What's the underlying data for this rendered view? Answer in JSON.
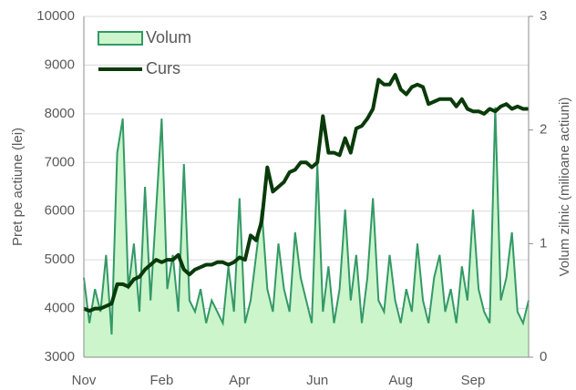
{
  "chart_data": {
    "type": "area-line",
    "x_label": null,
    "y_label": "Pret pe actiune (lei)",
    "y2_label": "Volum zilnic (milioane actiuni)",
    "categories": [
      "Nov",
      null,
      null,
      null,
      null,
      null,
      null,
      null,
      null,
      null,
      null,
      null,
      null,
      null,
      "Feb",
      null,
      null,
      null,
      null,
      null,
      null,
      null,
      null,
      null,
      null,
      null,
      null,
      null,
      "Apr",
      null,
      null,
      null,
      null,
      null,
      null,
      null,
      null,
      null,
      null,
      null,
      null,
      null,
      "Jun",
      null,
      null,
      null,
      null,
      null,
      null,
      null,
      null,
      null,
      null,
      null,
      null,
      null,
      null,
      "Aug",
      null,
      null,
      null,
      null,
      null,
      null,
      null,
      null,
      null,
      null,
      null,
      null,
      "Sep",
      null,
      null,
      null,
      null,
      null,
      null,
      null,
      null,
      null,
      null
    ],
    "series": [
      {
        "name": "Volum",
        "kind": "area",
        "axis": "y2",
        "color": "#339966",
        "fill": "#ccf5cc",
        "values": [
          0.7,
          0.3,
          0.6,
          0.4,
          0.9,
          0.2,
          1.8,
          2.1,
          0.6,
          1.0,
          0.4,
          1.5,
          0.5,
          1.3,
          2.1,
          0.6,
          0.9,
          0.4,
          1.7,
          0.5,
          0.4,
          0.6,
          0.3,
          0.5,
          0.4,
          0.3,
          0.8,
          0.4,
          1.4,
          0.3,
          0.5,
          0.9,
          1.3,
          0.6,
          0.4,
          1.0,
          0.6,
          0.4,
          1.1,
          0.7,
          0.5,
          0.3,
          1.7,
          0.4,
          0.8,
          0.3,
          0.6,
          1.3,
          0.5,
          0.9,
          0.3,
          0.7,
          1.4,
          0.5,
          0.4,
          0.9,
          0.5,
          0.3,
          0.6,
          0.4,
          1.0,
          0.5,
          0.3,
          0.7,
          0.9,
          0.4,
          0.6,
          0.3,
          0.8,
          0.5,
          1.3,
          0.6,
          0.4,
          0.3,
          2.2,
          0.5,
          0.7,
          1.1,
          0.4,
          0.3,
          0.5
        ]
      },
      {
        "name": "Curs",
        "kind": "line",
        "axis": "y",
        "color": "#0a3a0a",
        "values": [
          4000,
          3950,
          4000,
          4000,
          4050,
          4100,
          4500,
          4500,
          4450,
          4600,
          4650,
          4800,
          4900,
          5000,
          4950,
          5000,
          5000,
          5100,
          4800,
          4700,
          4800,
          4850,
          4900,
          4900,
          4950,
          4950,
          4900,
          4950,
          5050,
          5000,
          5500,
          5400,
          5800,
          6900,
          6400,
          6500,
          6600,
          6800,
          6850,
          7000,
          7000,
          6900,
          7000,
          7950,
          7200,
          7200,
          7150,
          7500,
          7200,
          7700,
          7750,
          7900,
          8100,
          8700,
          8600,
          8600,
          8800,
          8500,
          8400,
          8550,
          8600,
          8550,
          8200,
          8250,
          8300,
          8300,
          8300,
          8150,
          8300,
          8100,
          8050,
          8050,
          8000,
          8100,
          8050,
          8150,
          8200,
          8100,
          8150,
          8100,
          8100
        ]
      }
    ],
    "ylim": [
      3000,
      10000
    ],
    "yticks": [
      3000,
      4000,
      5000,
      6000,
      7000,
      8000,
      9000,
      10000
    ],
    "y2lim": [
      0,
      3
    ],
    "y2ticks": [
      0,
      1,
      2,
      3
    ],
    "grid": true,
    "legend": "upper-left"
  }
}
